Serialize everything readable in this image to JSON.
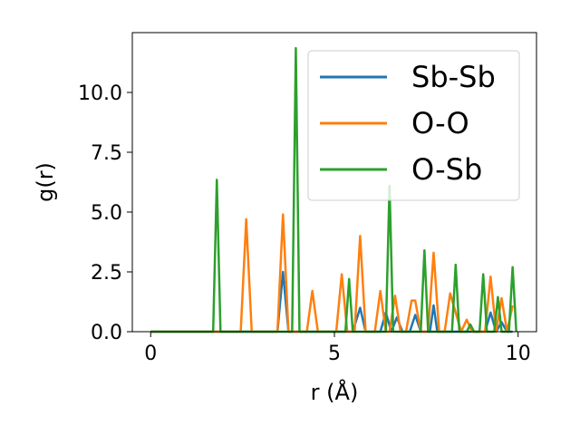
{
  "chart_data": {
    "type": "line",
    "title": "",
    "xlabel": "r (Å)",
    "ylabel": "g(r)",
    "xlim": [
      -0.5,
      10.5
    ],
    "ylim": [
      0,
      12.5
    ],
    "xticks": [
      0,
      5,
      10
    ],
    "xtick_labels": [
      "0",
      "5",
      "10"
    ],
    "yticks": [
      0,
      2.5,
      5,
      7.5,
      10
    ],
    "ytick_labels": [
      "0.0",
      "2.5",
      "5.0",
      "7.5",
      "10.0"
    ],
    "grid": false,
    "legend": {
      "position": "top-right",
      "entries": [
        "Sb-Sb",
        "O-O",
        "O-Sb"
      ]
    },
    "series": [
      {
        "name": "Sb-Sb",
        "color": "#1f77b4",
        "x": [
          0,
          3.45,
          3.6,
          3.75,
          5.5,
          5.7,
          5.85,
          6.25,
          6.4,
          6.55,
          6.7,
          6.85,
          7.05,
          7.2,
          7.35,
          7.6,
          7.7,
          7.8,
          9.1,
          9.25,
          9.4,
          9.55,
          9.7,
          9.85
        ],
        "y": [
          0,
          0,
          2.5,
          0,
          0,
          1.0,
          0,
          0,
          0.8,
          0,
          0.6,
          0,
          0,
          0.7,
          0,
          0,
          1.1,
          0,
          0,
          0.8,
          0,
          0.4,
          0,
          0
        ]
      },
      {
        "name": "O-O",
        "color": "#ff7f0e",
        "x": [
          0,
          2.45,
          2.6,
          2.75,
          3.45,
          3.6,
          3.75,
          4.25,
          4.4,
          4.55,
          5.05,
          5.2,
          5.35,
          5.55,
          5.7,
          5.85,
          6.1,
          6.25,
          6.4,
          6.5,
          6.65,
          6.8,
          6.95,
          7.1,
          7.2,
          7.35,
          7.55,
          7.7,
          7.85,
          8.0,
          8.15,
          8.45,
          8.6,
          8.75,
          9.1,
          9.25,
          9.4,
          9.55,
          9.7,
          9.85
        ],
        "y": [
          0,
          0,
          4.7,
          0,
          0,
          4.9,
          0,
          0,
          1.7,
          0,
          0,
          2.4,
          0,
          0,
          4.0,
          0,
          0,
          1.7,
          0,
          0,
          1.5,
          0,
          0,
          1.3,
          1.3,
          0,
          0,
          3.3,
          0,
          0,
          1.6,
          0,
          0.5,
          0,
          0,
          2.3,
          0,
          1.4,
          0,
          1.1
        ]
      },
      {
        "name": "O-Sb",
        "color": "#2ca02c",
        "x": [
          0,
          1.7,
          1.8,
          1.9,
          3.85,
          3.95,
          4.05,
          5.3,
          5.4,
          5.5,
          6.4,
          6.5,
          6.6,
          7.35,
          7.45,
          7.55,
          8.2,
          8.3,
          8.4,
          8.6,
          8.7,
          8.8,
          8.95,
          9.05,
          9.15,
          9.35,
          9.45,
          9.55,
          9.75,
          9.85,
          9.95
        ],
        "y": [
          0,
          0,
          6.35,
          0,
          0,
          11.85,
          0,
          0,
          2.2,
          0,
          0,
          6.1,
          0,
          0,
          3.4,
          0,
          0,
          2.8,
          0,
          0,
          0.3,
          0,
          0,
          2.4,
          0,
          0,
          1.45,
          0,
          0,
          2.7,
          0
        ]
      }
    ]
  }
}
